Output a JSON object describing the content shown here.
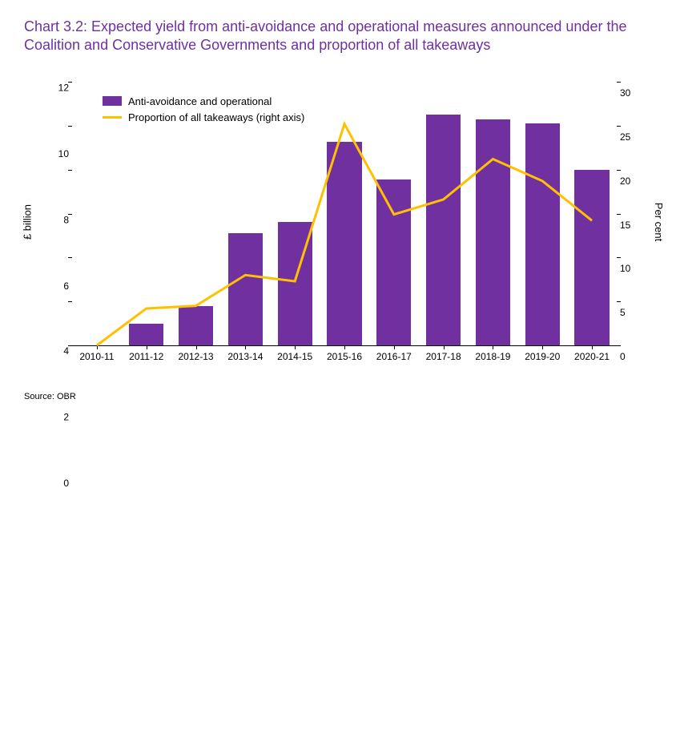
{
  "title": "Chart 3.2: Expected yield from anti-avoidance and operational measures announced under the Coalition and Conservative Governments and proportion of all takeaways",
  "source": "Source: OBR",
  "chart": {
    "type": "bar+line",
    "categories": [
      "2010-11",
      "2011-12",
      "2012-13",
      "2013-14",
      "2014-15",
      "2015-16",
      "2016-17",
      "2017-18",
      "2018-19",
      "2019-20",
      "2020-21"
    ],
    "bar_values": [
      0.0,
      1.0,
      1.8,
      5.1,
      5.6,
      9.25,
      7.55,
      10.5,
      10.3,
      10.1,
      8.0
    ],
    "line_values": [
      0.0,
      4.2,
      4.5,
      8.0,
      7.3,
      25.2,
      14.9,
      16.6,
      21.2,
      18.7,
      14.2
    ],
    "bar_color": "#7030a0",
    "line_color": "#ffc000",
    "line_width": 3,
    "bar_width_ratio": 0.7,
    "y_left": {
      "label": "£ billion",
      "min": 0,
      "max": 12,
      "step": 2
    },
    "y_right": {
      "label": "Per cent",
      "min": 0,
      "max": 30,
      "step": 5
    },
    "legend": {
      "bar_label": "Anti-avoidance and operational",
      "line_label": "Proportion of all takeaways (right axis)"
    },
    "title_color": "#7030a0",
    "title_fontsize": 18,
    "axis_fontsize": 12,
    "background_color": "#ffffff"
  }
}
